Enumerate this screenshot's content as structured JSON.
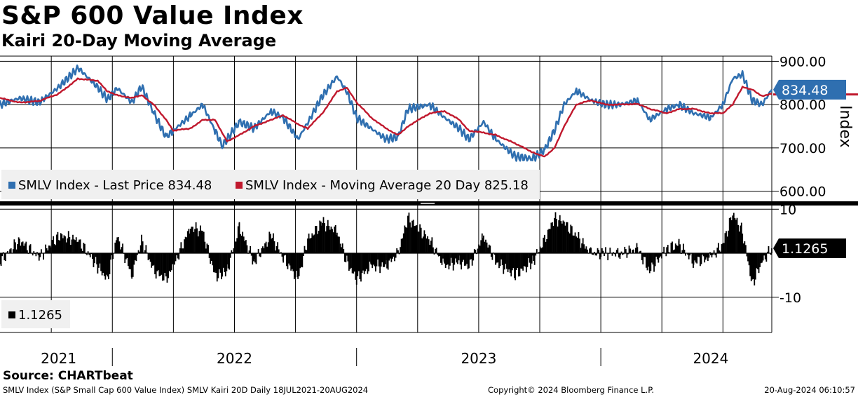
{
  "title": "S&P 600 Value Index",
  "subtitle": "Kairi 20-Day Moving Average",
  "legend": {
    "last_price": "SMLV Index - Last Price 834.48",
    "moving_average": "SMLV Index - Moving Average 20 Day 825.18",
    "kairi": "1.1265"
  },
  "source": "Source: CHARTbeat",
  "footer": {
    "left": "SMLV Index (S&P Small Cap 600 Value Index) SMLV Kairi 20D  Daily 18JUL2021-20AUG2024",
    "center": "Copyright© 2024 Bloomberg Finance L.P.",
    "right": "20-Aug-2024 06:10:57"
  },
  "colors": {
    "price": "#2f6fb0",
    "ma": "#c0182d",
    "kairi": "#000000",
    "badge_price": "#2f6fb0",
    "badge_kairi": "#000000"
  },
  "chart_data": [
    {
      "type": "line",
      "title": "S&P 600 Value Index",
      "ylabel": "Index",
      "ylim": [
        575,
        912
      ],
      "yticks": [
        "900.00",
        "800.00",
        "700.00",
        "600.00"
      ],
      "ytick_values": [
        900,
        800,
        700,
        600
      ],
      "x_range": [
        2021.54,
        2024.7
      ],
      "x": [
        2021.54,
        2021.62,
        2021.7,
        2021.78,
        2021.86,
        2021.94,
        2021.98,
        2022.02,
        2022.08,
        2022.12,
        2022.17,
        2022.22,
        2022.25,
        2022.32,
        2022.37,
        2022.42,
        2022.45,
        2022.47,
        2022.52,
        2022.58,
        2022.65,
        2022.7,
        2022.76,
        2022.8,
        2022.86,
        2022.92,
        2022.96,
        2023.0,
        2023.06,
        2023.12,
        2023.17,
        2023.21,
        2023.3,
        2023.36,
        2023.42,
        2023.46,
        2023.52,
        2023.57,
        2023.65,
        2023.72,
        2023.77,
        2023.81,
        2023.85,
        2023.9,
        2023.96,
        2024.02,
        2024.08,
        2024.15,
        2024.2,
        2024.27,
        2024.32,
        2024.38,
        2024.45,
        2024.5,
        2024.54,
        2024.58,
        2024.62,
        2024.66,
        2024.7
      ],
      "series": [
        {
          "name": "SMLV Index - Last Price",
          "last": "834.48",
          "values": [
            800,
            815,
            805,
            840,
            885,
            840,
            812,
            838,
            805,
            842,
            780,
            725,
            740,
            775,
            800,
            740,
            705,
            720,
            760,
            745,
            785,
            770,
            720,
            758,
            820,
            865,
            830,
            770,
            745,
            720,
            725,
            790,
            800,
            770,
            745,
            720,
            760,
            720,
            680,
            675,
            695,
            740,
            800,
            832,
            810,
            800,
            800,
            810,
            765,
            790,
            800,
            780,
            770,
            800,
            860,
            870,
            810,
            800,
            834.48
          ]
        },
        {
          "name": "SMLV Index - Moving Average 20 Day",
          "last": "825.18",
          "values": [
            815,
            805,
            808,
            825,
            860,
            855,
            830,
            822,
            815,
            822,
            800,
            765,
            740,
            745,
            765,
            765,
            735,
            715,
            730,
            750,
            765,
            775,
            755,
            745,
            780,
            830,
            840,
            805,
            770,
            745,
            730,
            750,
            780,
            785,
            765,
            740,
            735,
            730,
            710,
            690,
            680,
            700,
            750,
            800,
            810,
            800,
            800,
            802,
            790,
            780,
            790,
            790,
            780,
            780,
            800,
            840,
            835,
            820,
            825.18
          ]
        },
        {
          "name": "SMLV Kairi 20D",
          "last": "1.1265",
          "values": [
            -2,
            3,
            -1,
            4,
            3,
            -3,
            -6,
            4,
            -5,
            3,
            -4,
            -6,
            -3,
            6,
            5,
            -5,
            -5,
            -4,
            6,
            -2,
            4,
            -1,
            -6,
            3,
            7,
            5,
            -2,
            -6,
            -3,
            -3,
            0,
            8,
            3,
            -3,
            -2,
            -3,
            4,
            -2,
            -5,
            -2,
            3,
            8,
            7,
            4,
            0,
            0,
            0,
            1,
            -4,
            1,
            2,
            -2,
            -1,
            2,
            9,
            5,
            -7,
            -2,
            1.1265
          ]
        }
      ]
    },
    {
      "type": "bar",
      "title": "SMLV Kairi 20D",
      "ylim": [
        -18,
        11
      ],
      "yticks": [
        "10",
        "-10"
      ],
      "ytick_values": [
        10,
        -10
      ],
      "last": "1.1265"
    }
  ],
  "x_axis_labels": [
    "2021",
    "2022",
    "2023",
    "2024"
  ],
  "x_axis_label_values": [
    2021.78,
    2022.5,
    2023.5,
    2024.45
  ],
  "year_separators": [
    2022.0,
    2023.0,
    2024.0
  ]
}
